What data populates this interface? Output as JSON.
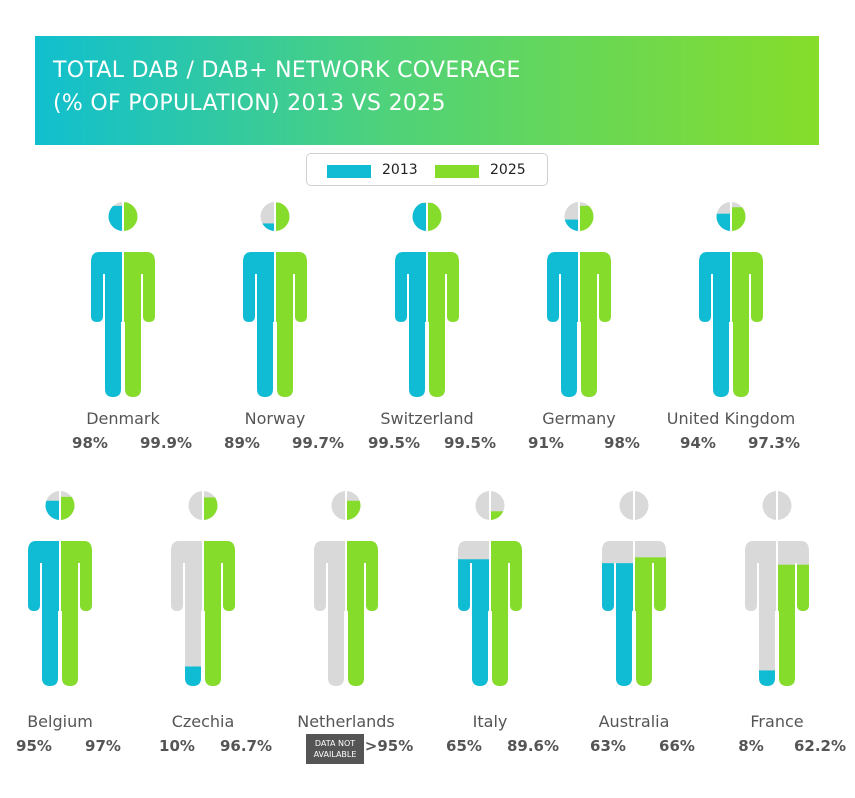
{
  "banner": {
    "line1": "TOTAL DAB / DAB+ NETWORK COVERAGE",
    "line2": "(% OF POPULATION) 2013 VS 2025"
  },
  "legend": {
    "items": [
      {
        "label": "2013",
        "color": "#10bcd4"
      },
      {
        "label": "2025",
        "color": "#86dc2a"
      }
    ]
  },
  "colors": {
    "y2013": "#10bcd4",
    "y2025": "#86dc2a",
    "empty": "#d9d9d9",
    "na_badge": "#555555"
  },
  "chart_data": {
    "type": "pictograph",
    "title": "TOTAL DAB / DAB+ NETWORK COVERAGE (% OF POPULATION) 2013 VS 2025",
    "series": [
      {
        "name": "2013",
        "color": "#10bcd4"
      },
      {
        "name": "2025",
        "color": "#86dc2a"
      }
    ],
    "countries": [
      {
        "name": "Denmark",
        "v2013": 98,
        "label2013": "98%",
        "v2025": 99.9,
        "label2025": "99.9%"
      },
      {
        "name": "Norway",
        "v2013": 89,
        "label2013": "89%",
        "v2025": 99.7,
        "label2025": "99.7%"
      },
      {
        "name": "Switzerland",
        "v2013": 99.5,
        "label2013": "99.5%",
        "v2025": 99.5,
        "label2025": "99.5%"
      },
      {
        "name": "Germany",
        "v2013": 91,
        "label2013": "91%",
        "v2025": 98,
        "label2025": "98%"
      },
      {
        "name": "United Kingdom",
        "v2013": 94,
        "label2013": "94%",
        "v2025": 97.3,
        "label2025": "97.3%"
      },
      {
        "name": "Belgium",
        "v2013": 95,
        "label2013": "95%",
        "v2025": 97,
        "label2025": "97%"
      },
      {
        "name": "Czechia",
        "v2013": 10,
        "label2013": "10%",
        "v2025": 96.7,
        "label2025": "96.7%"
      },
      {
        "name": "Netherlands",
        "v2013": null,
        "label2013": "DATA NOT AVAILABLE",
        "v2025": 95,
        "label2025": ">95%"
      },
      {
        "name": "Italy",
        "v2013": 65,
        "label2013": "65%",
        "v2025": 89.6,
        "label2025": "89.6%"
      },
      {
        "name": "Australia",
        "v2013": 63,
        "label2013": "63%",
        "v2025": 66,
        "label2025": "66%"
      },
      {
        "name": "France",
        "v2013": 8,
        "label2013": "8%",
        "v2025": 62.2,
        "label2025": "62.2%"
      }
    ]
  }
}
